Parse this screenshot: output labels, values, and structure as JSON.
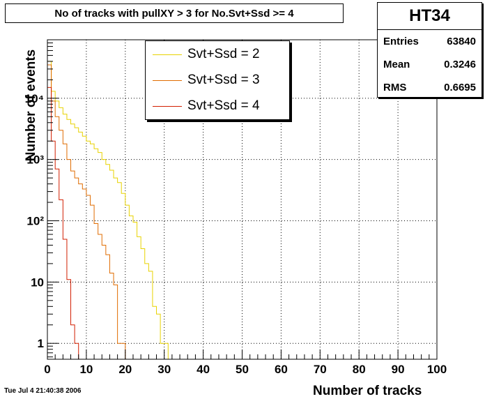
{
  "chart_data": {
    "type": "line",
    "title": "No of tracks with pullXY > 3 for No.Svt+Ssd >= 4",
    "xlabel": "Number of tracks",
    "ylabel": "Number of events",
    "xlim": [
      0,
      100
    ],
    "ylim": [
      0.55,
      90000
    ],
    "log_y": true,
    "grid": true,
    "x_ticks": [
      0,
      10,
      20,
      30,
      40,
      50,
      60,
      70,
      80,
      90,
      100
    ],
    "x_tick_labels": [
      "0",
      "10",
      "20",
      "30",
      "40",
      "50",
      "60",
      "70",
      "80",
      "90",
      "100"
    ],
    "y_ticks": [
      1,
      10,
      100,
      1000,
      10000
    ],
    "y_tick_labels": [
      "1",
      "10",
      "10²",
      "10³",
      "10⁴"
    ],
    "legend_position": "top-center",
    "series": [
      {
        "name": "Svt+Ssd = 2",
        "color": "#e8d200",
        "x": [
          0,
          1,
          2,
          3,
          4,
          5,
          6,
          7,
          8,
          9,
          10,
          11,
          12,
          13,
          14,
          15,
          16,
          17,
          18,
          19,
          20,
          21,
          22,
          23,
          24,
          25,
          26,
          27,
          28,
          29,
          30,
          31
        ],
        "values": [
          40000,
          13000,
          9000,
          7000,
          5500,
          4500,
          3800,
          3300,
          2800,
          2400,
          2000,
          1800,
          1500,
          1300,
          1000,
          830,
          670,
          500,
          420,
          280,
          180,
          120,
          95,
          55,
          35,
          20,
          15,
          4,
          3,
          1,
          1,
          0
        ]
      },
      {
        "name": "Svt+Ssd = 3",
        "color": "#e06c00",
        "x": [
          0,
          1,
          2,
          3,
          4,
          5,
          6,
          7,
          8,
          9,
          10,
          11,
          12,
          13,
          14,
          15,
          16,
          17,
          18,
          19,
          20
        ],
        "values": [
          35000,
          9000,
          5000,
          3000,
          1800,
          1000,
          650,
          500,
          400,
          330,
          260,
          180,
          90,
          60,
          40,
          28,
          14,
          9,
          1,
          1,
          0
        ]
      },
      {
        "name": "Svt+Ssd = 4",
        "color": "#d21e00",
        "x": [
          0,
          1,
          2,
          3,
          4,
          5,
          6,
          7,
          8
        ],
        "values": [
          15000,
          2000,
          700,
          220,
          50,
          11,
          2,
          1,
          0
        ]
      }
    ]
  },
  "stats": {
    "name": "HT34",
    "rows": [
      {
        "label": "Entries",
        "value": "63840"
      },
      {
        "label": "Mean",
        "value": "0.3246"
      },
      {
        "label": "RMS",
        "value": "0.6695"
      }
    ]
  },
  "footer": {
    "date": "Tue Jul  4 21:40:38 2006"
  }
}
